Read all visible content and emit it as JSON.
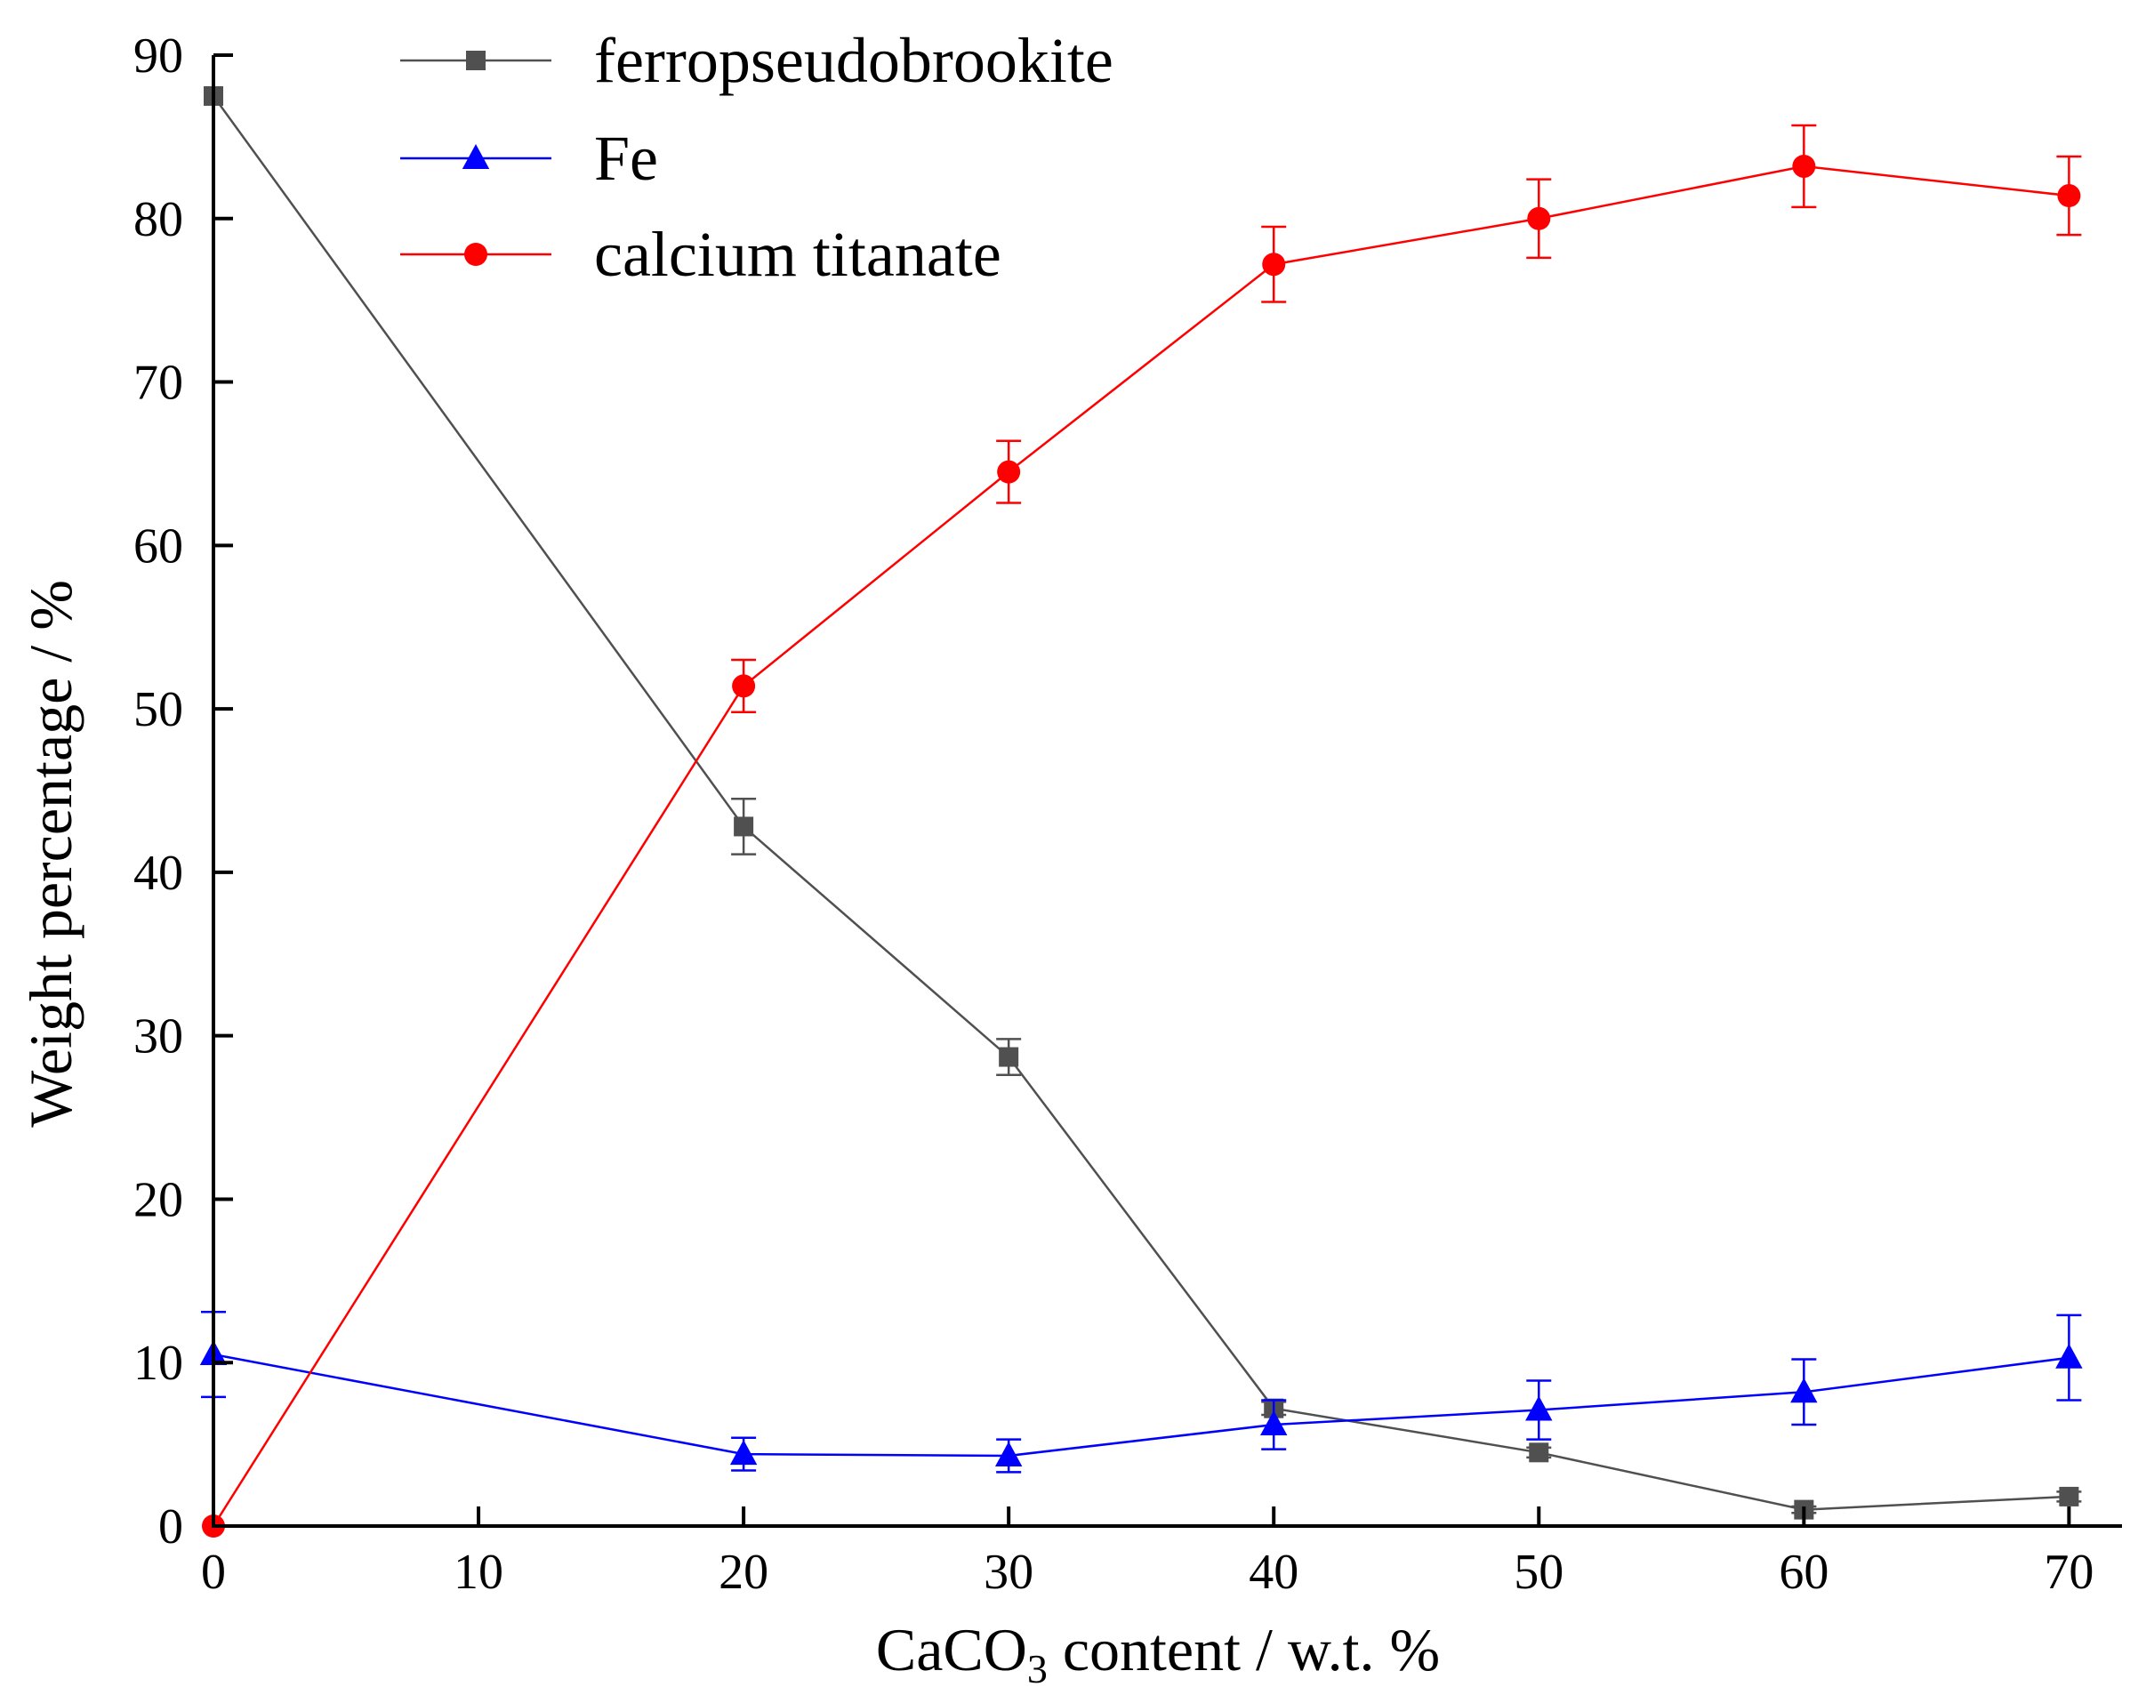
{
  "chart_data": {
    "type": "line",
    "xlabel_main": "CaCO",
    "xlabel_sub": "3",
    "xlabel_rest": " content / w.t. %",
    "ylabel": "Weight percentage / %",
    "xlim": [
      0,
      72
    ],
    "ylim": [
      0,
      90
    ],
    "xticks": [
      0,
      10,
      20,
      30,
      40,
      50,
      60,
      70
    ],
    "yticks": [
      0,
      10,
      20,
      30,
      40,
      50,
      60,
      70,
      80,
      90
    ],
    "grid": false,
    "legend_position": "top-left",
    "series": [
      {
        "name": "ferropseudobrookite",
        "color": "#505050",
        "marker": "square",
        "x": [
          0,
          20,
          30,
          40,
          50,
          60,
          70
        ],
        "values": [
          87.5,
          42.8,
          28.7,
          7.2,
          4.5,
          1.0,
          1.8
        ],
        "errors": [
          0,
          1.7,
          1.1,
          0.4,
          0.3,
          0.2,
          0.3
        ]
      },
      {
        "name": "Fe",
        "color": "#0000ff",
        "marker": "triangle",
        "x": [
          0,
          20,
          30,
          40,
          50,
          60,
          70
        ],
        "values": [
          10.5,
          4.4,
          4.3,
          6.2,
          7.1,
          8.2,
          10.3
        ],
        "errors": [
          2.6,
          1.0,
          1.0,
          1.5,
          1.8,
          2.0,
          2.6
        ]
      },
      {
        "name": "calcium titanate",
        "color": "#ff0000",
        "marker": "circle",
        "x": [
          0,
          20,
          30,
          40,
          50,
          60,
          70
        ],
        "values": [
          0,
          51.4,
          64.5,
          77.2,
          80.0,
          83.2,
          81.4
        ],
        "errors": [
          0,
          1.6,
          1.9,
          2.3,
          2.4,
          2.5,
          2.4
        ]
      }
    ]
  }
}
